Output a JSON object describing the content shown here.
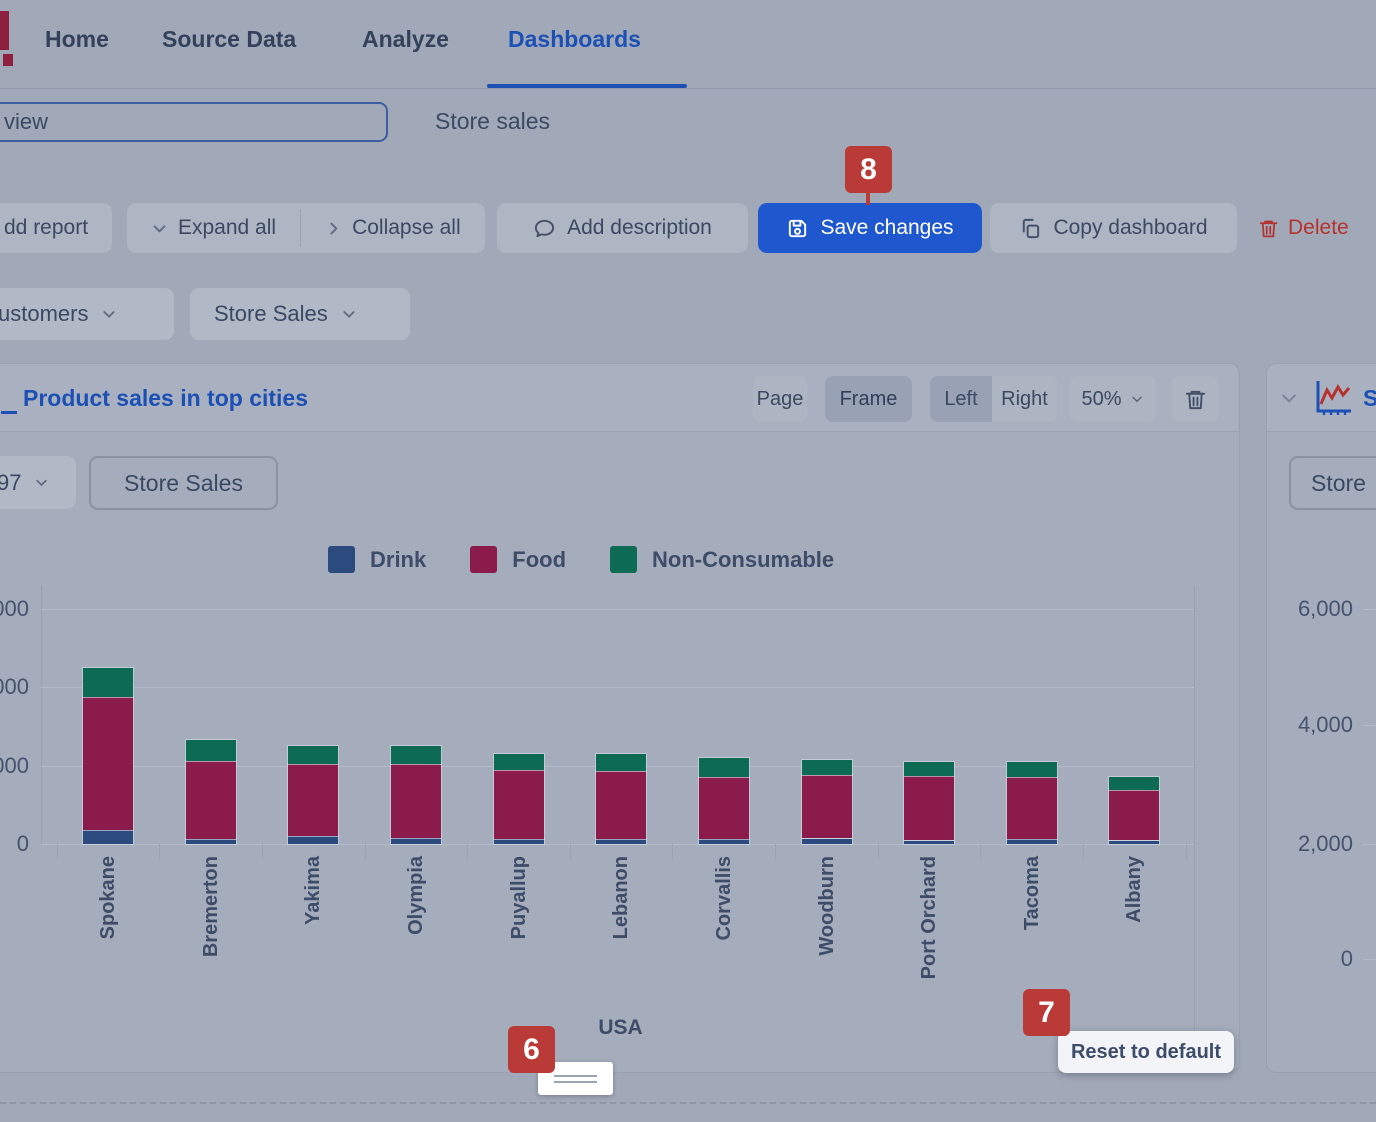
{
  "nav": {
    "items": [
      {
        "label": "Home",
        "active": false
      },
      {
        "label": "Source Data",
        "active": false
      },
      {
        "label": "Analyze",
        "active": false
      },
      {
        "label": "Dashboards",
        "active": true
      }
    ]
  },
  "header": {
    "name_input": {
      "value": "view"
    },
    "subtitle": "Store sales"
  },
  "toolbar": {
    "add_report": "dd report",
    "expand_all": "Expand all",
    "collapse_all": "Collapse all",
    "add_description": "Add description",
    "save_changes": "Save changes",
    "copy_dashboard": "Copy dashboard",
    "delete_label": "Delete"
  },
  "filters": {
    "customers": "ustomers",
    "store_sales": "Store Sales"
  },
  "card": {
    "title": "Product sales in top cities",
    "controls": {
      "page": "Page",
      "frame": "Frame",
      "left": "Left",
      "right": "Right",
      "zoom": "50%"
    },
    "filters": {
      "year": "97",
      "measure": "Store Sales"
    }
  },
  "chart_data": {
    "type": "bar",
    "stacked": true,
    "title": "Product sales in top cities",
    "categories": [
      "Spokane",
      "Bremerton",
      "Yakima",
      "Olympia",
      "Puyallup",
      "Lebanon",
      "Corvallis",
      "Woodburn",
      "Port Orchard",
      "Tacoma",
      "Albany"
    ],
    "series": [
      {
        "name": "Drink",
        "color": "#2b4a7d",
        "values": [
          350,
          120,
          200,
          150,
          130,
          120,
          120,
          140,
          90,
          120,
          90
        ]
      },
      {
        "name": "Food",
        "color": "#8a1b4b",
        "values": [
          3400,
          2000,
          1850,
          1900,
          1750,
          1750,
          1600,
          1630,
          1640,
          1580,
          1280
        ]
      },
      {
        "name": "Non-Consumable",
        "color": "#0d6b54",
        "values": [
          750,
          530,
          450,
          450,
          430,
          420,
          480,
          380,
          370,
          400,
          340
        ]
      }
    ],
    "xlabel": "USA",
    "ylabel": "",
    "ylim": [
      0,
      6600
    ],
    "y_tick_step": 2000,
    "y_tick_labels_visible": [
      "000",
      "000",
      "000",
      "0"
    ],
    "grid": true,
    "legend_position": "top"
  },
  "right_card": {
    "title_fragment": "S",
    "button_label": "Store",
    "y_ticks": [
      "6,000",
      "4,000",
      "2,000",
      "0"
    ]
  },
  "annotations": {
    "badge6": "6",
    "badge7": "7",
    "badge8": "8",
    "tooltip": "Reset to default"
  },
  "colors": {
    "accent_blue": "#1d50b4",
    "save_button": "#1f57cf",
    "badge_red": "#b93a37",
    "delete_red": "#b5322e",
    "logo_maroon": "#8e1f3f"
  }
}
